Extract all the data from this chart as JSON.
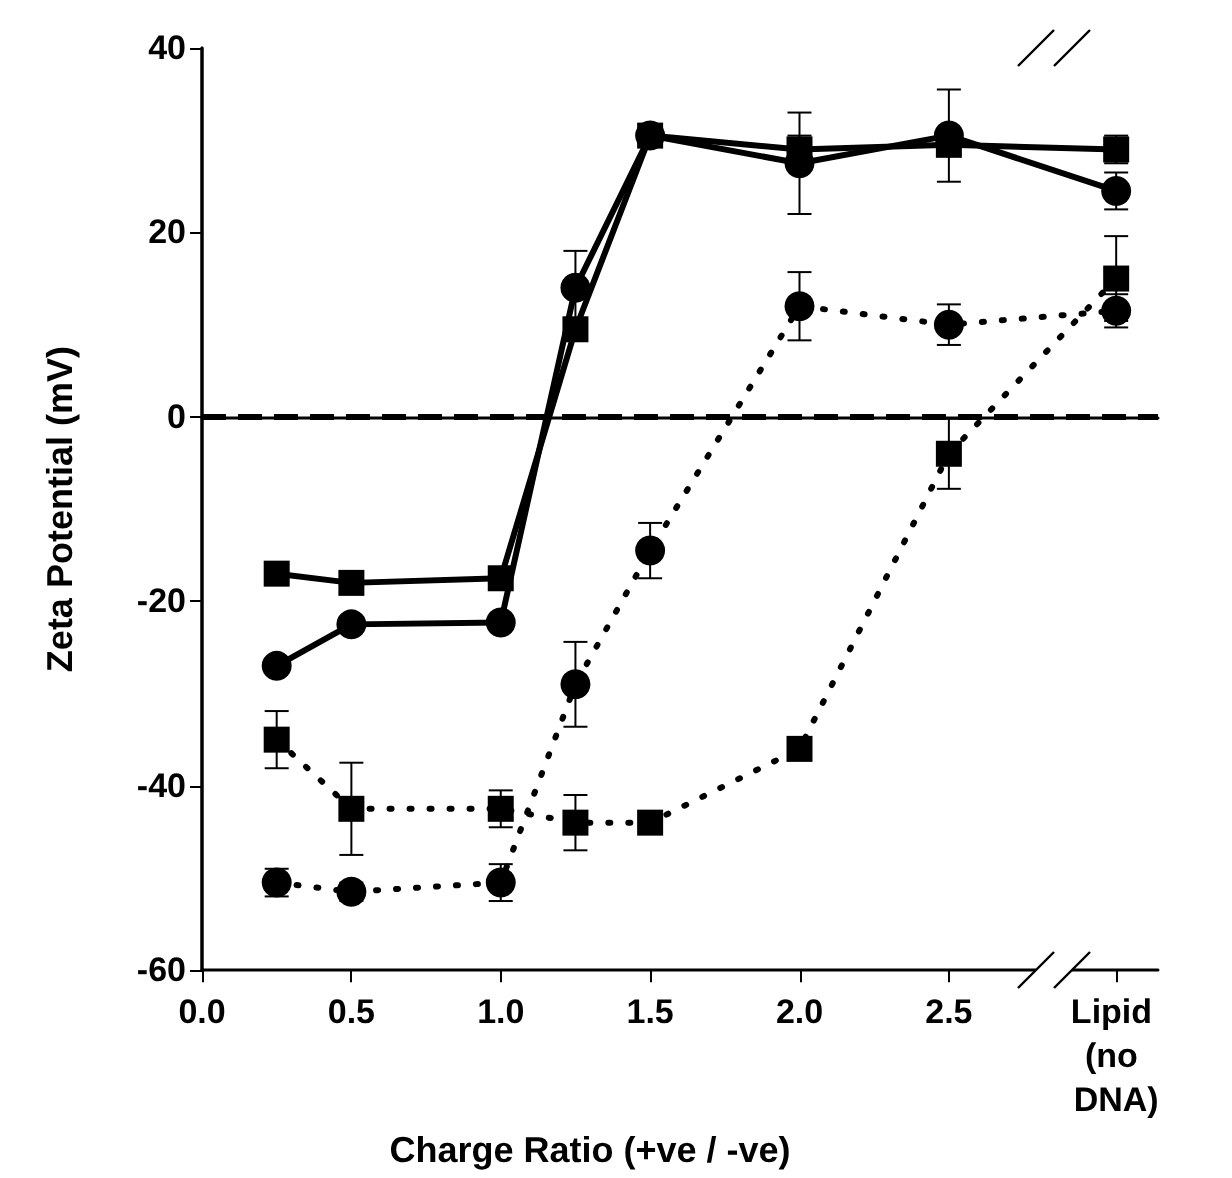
{
  "chart_data": {
    "type": "line",
    "xlabel": "Charge Ratio (+ve / -ve)",
    "ylabel": "Zeta Potential (mV)",
    "xlim": [
      0,
      3.2
    ],
    "xticks": [
      {
        "value": 0,
        "label": "0.0"
      },
      {
        "value": 0.5,
        "label": "0.5"
      },
      {
        "value": 1,
        "label": "1.0"
      },
      {
        "value": 1.5,
        "label": "1.5"
      },
      {
        "value": 2,
        "label": "2.0"
      },
      {
        "value": 2.5,
        "label": "2.5"
      },
      {
        "value": 3.06,
        "label": "Lipid (no DNA)"
      }
    ],
    "ylim": [
      -60,
      40
    ],
    "yticks": [
      -60,
      -40,
      -20,
      0,
      20,
      40
    ],
    "grid": false,
    "x": [
      0.25,
      0.5,
      1,
      1.25,
      1.5,
      2,
      2.5,
      3.06
    ],
    "series": [
      {
        "color": "#000000",
        "marker": "square",
        "line_style": "solid",
        "values": [
          -17,
          -18,
          -17.5,
          9.5,
          30.5,
          29,
          29.5,
          29
        ],
        "errors": [
          null,
          null,
          null,
          null,
          null,
          1.5,
          null,
          1.5
        ]
      },
      {
        "color": "#000000",
        "marker": "circle",
        "line_style": "solid",
        "values": [
          -27,
          -22.5,
          -22.3,
          14,
          30.5,
          27.5,
          30.5,
          24.5
        ],
        "errors": [
          null,
          null,
          null,
          4,
          null,
          5.5,
          5,
          2
        ]
      },
      {
        "color": "#000000",
        "marker": "circle",
        "line_style": "dotted",
        "values": [
          -50.5,
          -51.5,
          -50.5,
          -29,
          -14.5,
          12,
          10,
          11.5
        ],
        "errors": [
          1.5,
          1,
          2,
          4.6,
          3,
          3.7,
          2.2,
          1.8
        ]
      },
      {
        "color": "#000000",
        "marker": "square",
        "line_style": "dotted",
        "values": [
          -35,
          -42.5,
          -42.5,
          -44,
          -44,
          -36,
          -4,
          15
        ],
        "errors": [
          3.1,
          5,
          2,
          3,
          null,
          null,
          3.8,
          4.6
        ]
      }
    ],
    "ref_lines": [
      {
        "axis": "y",
        "value": 0,
        "color": "#000000",
        "line_style": "dashed"
      }
    ]
  }
}
